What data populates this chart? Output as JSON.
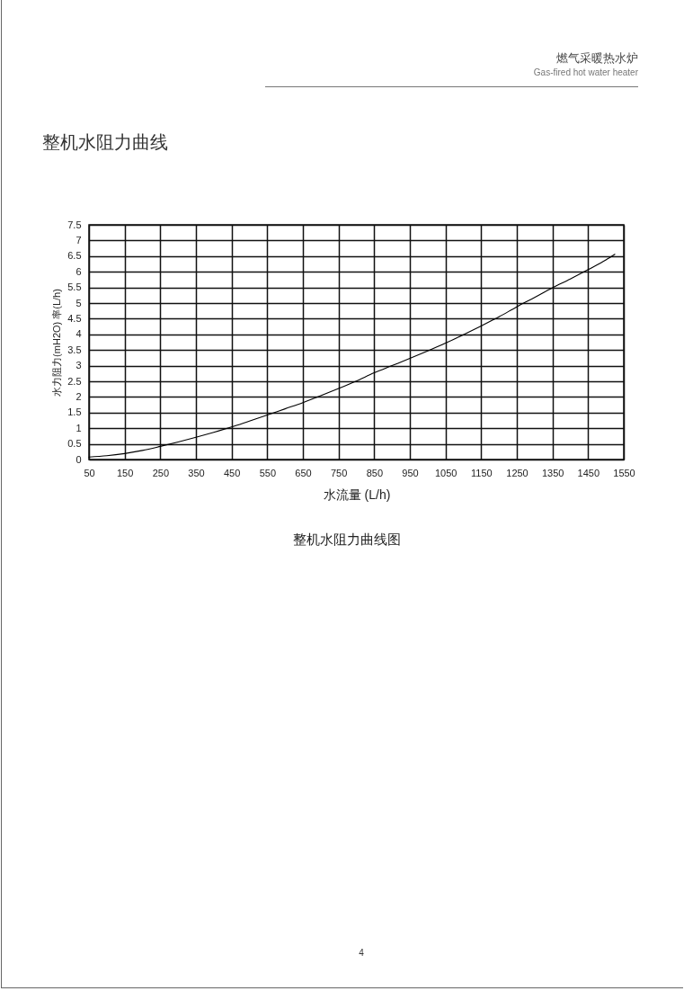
{
  "chart_data": {
    "type": "line",
    "title": "整机水阻力曲线",
    "xlabel": "水流量 (L/h)",
    "ylabel": "水力阻力(mH2O) 率(L/h)",
    "annotations": [
      "燃气采暖热水炉",
      "Gas-fired hot water heater",
      "整机水阻力曲线图",
      "4"
    ],
    "x": [
      50,
      100,
      150,
      200,
      250,
      300,
      350,
      400,
      450,
      500,
      550,
      600,
      650,
      700,
      750,
      800,
      850,
      900,
      950,
      1000,
      1050,
      1100,
      1150,
      1200,
      1250,
      1300,
      1350,
      1400,
      1450,
      1500,
      1525
    ],
    "series": [
      {
        "color": "#000000",
        "values": [
          0.08,
          0.12,
          0.19,
          0.29,
          0.42,
          0.56,
          0.71,
          0.87,
          1.04,
          1.23,
          1.42,
          1.62,
          1.82,
          2.04,
          2.27,
          2.51,
          2.77,
          3.0,
          3.23,
          3.47,
          3.72,
          3.99,
          4.27,
          4.56,
          4.88,
          5.18,
          5.49,
          5.77,
          6.07,
          6.38,
          6.56
        ]
      }
    ],
    "xlim": [
      50,
      1550
    ],
    "xticks": [
      50,
      150,
      250,
      350,
      450,
      550,
      650,
      750,
      850,
      950,
      1050,
      1150,
      1250,
      1350,
      1450,
      1550
    ],
    "ylim": [
      0,
      7.5
    ],
    "yticks": [
      0,
      0.5,
      1,
      1.5,
      2,
      2.5,
      3,
      3.5,
      4,
      4.5,
      5,
      5.5,
      6,
      6.5,
      7,
      7.5
    ],
    "grid": true
  }
}
